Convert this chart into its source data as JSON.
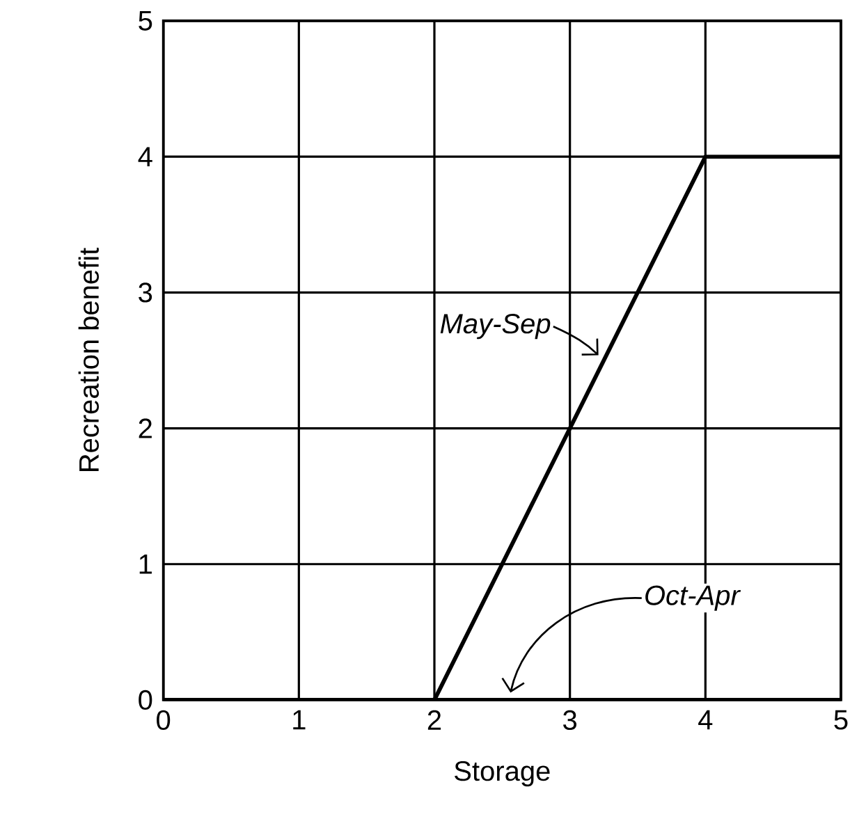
{
  "chart_data": {
    "type": "line",
    "xlabel": "Storage",
    "ylabel": "Recreation benefit",
    "series": [
      {
        "name": "May-Sep",
        "color": "#000000",
        "x": [
          0,
          2,
          4,
          5
        ],
        "values": [
          0,
          0,
          4,
          4
        ]
      },
      {
        "name": "Oct-Apr",
        "color": "#000000",
        "x": [
          0,
          5
        ],
        "values": [
          0,
          0
        ]
      }
    ],
    "xlim": [
      0,
      5
    ],
    "ylim": [
      0,
      5
    ],
    "xticks": [
      0,
      1,
      2,
      3,
      4,
      5
    ],
    "yticks": [
      0,
      1,
      2,
      3,
      4,
      5
    ],
    "grid": true,
    "marker": "none",
    "line_style": "solid"
  }
}
